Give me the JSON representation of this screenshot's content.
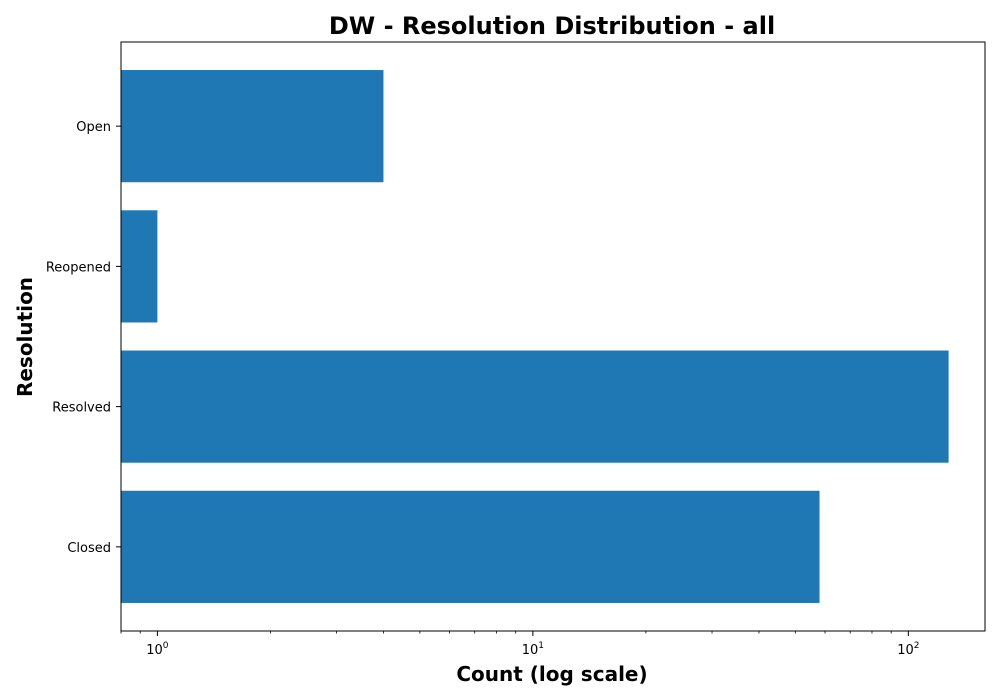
{
  "chart_data": {
    "type": "bar",
    "orientation": "horizontal",
    "title": "DW - Resolution Distribution - all",
    "xlabel": "Count (log scale)",
    "ylabel": "Resolution",
    "x_scale": "log",
    "xlim": [
      0.8,
      160
    ],
    "x_ticks": [
      {
        "value": 1,
        "base": "10",
        "exp": "0"
      },
      {
        "value": 10,
        "base": "10",
        "exp": "1"
      },
      {
        "value": 100,
        "base": "10",
        "exp": "2"
      }
    ],
    "categories": [
      "Open",
      "Reopened",
      "Resolved",
      "Closed"
    ],
    "values": [
      4,
      1,
      128,
      58
    ],
    "bar_color": "#1f77b4",
    "grid": false,
    "legend": "none"
  }
}
